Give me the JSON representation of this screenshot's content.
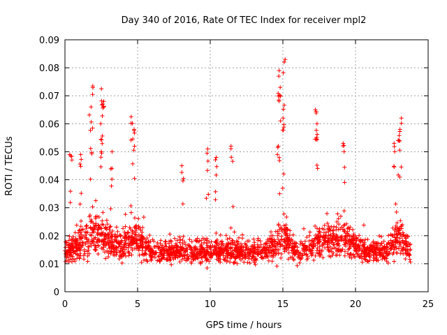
{
  "chart_data": {
    "type": "scatter",
    "title": "Day 340 of 2016, Rate Of TEC Index for receiver mpl2",
    "xlabel": "GPS time / hours",
    "ylabel": "ROTI / TECUs",
    "xlim": [
      0,
      25
    ],
    "ylim": [
      0,
      0.09
    ],
    "xticks": [
      0,
      5,
      10,
      15,
      20,
      25
    ],
    "xtick_labels": [
      "0",
      "5",
      "10",
      "15",
      "20",
      "25"
    ],
    "yticks": [
      0,
      0.01,
      0.02,
      0.03,
      0.04,
      0.05,
      0.06,
      0.07,
      0.08,
      0.09
    ],
    "ytick_labels": [
      "0",
      "0.01",
      "0.02",
      "0.03",
      "0.04",
      "0.05",
      "0.06",
      "0.07",
      "0.08",
      "0.09"
    ],
    "grid": true,
    "marker": "+",
    "marker_color": "#ff0000",
    "bulk_band": {
      "x_range": [
        0,
        23.8
      ],
      "y_range": [
        0.005,
        0.03
      ],
      "approx_points": 4000
    },
    "spikes": [
      {
        "x": 1.75,
        "y": 0.066
      },
      {
        "x": 1.9,
        "y": 0.0735
      },
      {
        "x": 2.55,
        "y": 0.0725
      },
      {
        "x": 2.6,
        "y": 0.068
      },
      {
        "x": 2.5,
        "y": 0.06
      },
      {
        "x": 3.2,
        "y": 0.05
      },
      {
        "x": 4.6,
        "y": 0.0625
      },
      {
        "x": 4.8,
        "y": 0.058
      },
      {
        "x": 8.1,
        "y": 0.045
      },
      {
        "x": 9.8,
        "y": 0.051
      },
      {
        "x": 10.4,
        "y": 0.048
      },
      {
        "x": 11.5,
        "y": 0.052
      },
      {
        "x": 14.75,
        "y": 0.079
      },
      {
        "x": 14.8,
        "y": 0.073
      },
      {
        "x": 15.1,
        "y": 0.083
      },
      {
        "x": 15.0,
        "y": 0.062
      },
      {
        "x": 14.7,
        "y": 0.052
      },
      {
        "x": 17.3,
        "y": 0.065
      },
      {
        "x": 17.35,
        "y": 0.06
      },
      {
        "x": 19.2,
        "y": 0.053
      },
      {
        "x": 22.7,
        "y": 0.053
      },
      {
        "x": 23.1,
        "y": 0.062
      },
      {
        "x": 23.0,
        "y": 0.058
      },
      {
        "x": 0.4,
        "y": 0.049
      },
      {
        "x": 1.1,
        "y": 0.049
      }
    ]
  }
}
